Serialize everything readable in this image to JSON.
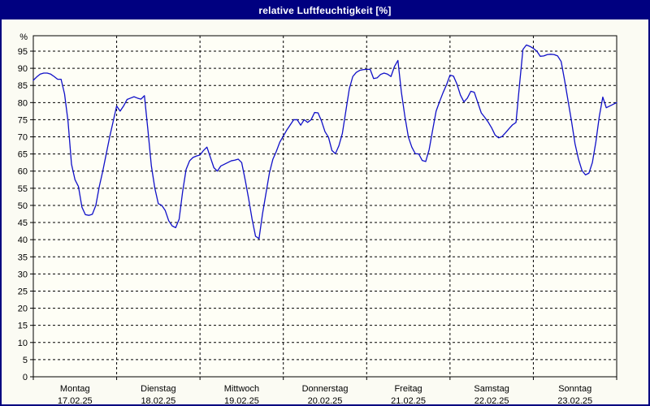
{
  "window": {
    "title": "relative Luftfeuchtigkeit [%]"
  },
  "colors": {
    "titlebar_bg": "#000080",
    "titlebar_text": "#ffffff",
    "frame": "#000080",
    "line": "#1010c8",
    "grid": "#000000",
    "text": "#000000",
    "plot_bg": "#fefef6",
    "page_bg": "#fbfbf3"
  },
  "chart_data": {
    "type": "line",
    "title": "relative Luftfeuchtigkeit [%]",
    "ylabel": "%",
    "y_unit_label": "%",
    "ylim": [
      0,
      99.5
    ],
    "y_ticks": [
      0,
      5,
      10,
      15,
      20,
      25,
      30,
      35,
      40,
      45,
      50,
      55,
      60,
      65,
      70,
      75,
      80,
      85,
      90,
      95
    ],
    "grid": "dashed, horizontal at every 5%, vertical at day boundaries",
    "legend_position": "none",
    "x_days": [
      {
        "name": "Montag",
        "date": "17.02.25"
      },
      {
        "name": "Dienstag",
        "date": "18.02.25"
      },
      {
        "name": "Mittwoch",
        "date": "19.02.25"
      },
      {
        "name": "Donnerstag",
        "date": "20.02.25"
      },
      {
        "name": "Freitag",
        "date": "21.02.25"
      },
      {
        "name": "Samstag",
        "date": "22.02.25"
      },
      {
        "name": "Sonntag",
        "date": "23.02.25"
      }
    ],
    "sampling": "hourly values from Monday 00:00 to Sunday 24:00",
    "series": [
      {
        "name": "relative Luftfeuchtigkeit",
        "values": [
          86.5,
          87.5,
          88.3,
          88.6,
          88.6,
          88.3,
          87.6,
          86.8,
          86.8,
          82.5,
          74.5,
          62.0,
          57.5,
          55.5,
          49.5,
          47.3,
          47.1,
          47.4,
          50.0,
          55.5,
          60.0,
          65.0,
          70.0,
          74.5,
          79.0,
          77.5,
          79.0,
          80.9,
          81.3,
          81.7,
          81.3,
          81.0,
          82.0,
          72.0,
          61.5,
          55.0,
          50.5,
          50.0,
          48.5,
          45.5,
          44.0,
          43.5,
          46.0,
          54.0,
          60.5,
          63.0,
          64.0,
          64.4,
          64.7,
          66.0,
          67.0,
          64.0,
          61.0,
          60.0,
          61.5,
          62.0,
          62.5,
          63.0,
          63.2,
          63.5,
          62.5,
          57.5,
          52.0,
          46.0,
          41.0,
          40.3,
          47.5,
          53.5,
          59.5,
          63.5,
          65.8,
          68.5,
          70.2,
          72.0,
          73.5,
          75.0,
          75.0,
          73.4,
          75.0,
          74.2,
          75.0,
          77.1,
          77.0,
          74.6,
          71.5,
          69.9,
          66.0,
          65.1,
          67.4,
          71.0,
          77.5,
          84.0,
          87.6,
          88.8,
          89.4,
          89.6,
          89.7,
          89.7,
          87.0,
          87.2,
          88.2,
          88.6,
          88.3,
          87.6,
          90.5,
          92.3,
          83.0,
          76.0,
          70.0,
          67.0,
          65.1,
          65.0,
          63.1,
          62.8,
          66.3,
          72.0,
          77.5,
          80.3,
          82.9,
          85.2,
          88.0,
          87.7,
          85.4,
          82.2,
          80.2,
          81.3,
          83.3,
          83.0,
          80.0,
          77.0,
          75.7,
          74.3,
          72.6,
          70.5,
          69.7,
          70.1,
          71.2,
          72.4,
          73.5,
          74.2,
          85.0,
          95.5,
          96.8,
          96.4,
          95.8,
          95.0,
          93.5,
          93.6,
          94.0,
          94.1,
          94.0,
          93.6,
          92.0,
          86.5,
          80.5,
          74.5,
          68.0,
          63.5,
          60.2,
          58.9,
          59.4,
          62.5,
          68.5,
          76.0,
          81.6,
          78.5,
          79.0,
          79.5,
          80.0
        ]
      }
    ]
  }
}
